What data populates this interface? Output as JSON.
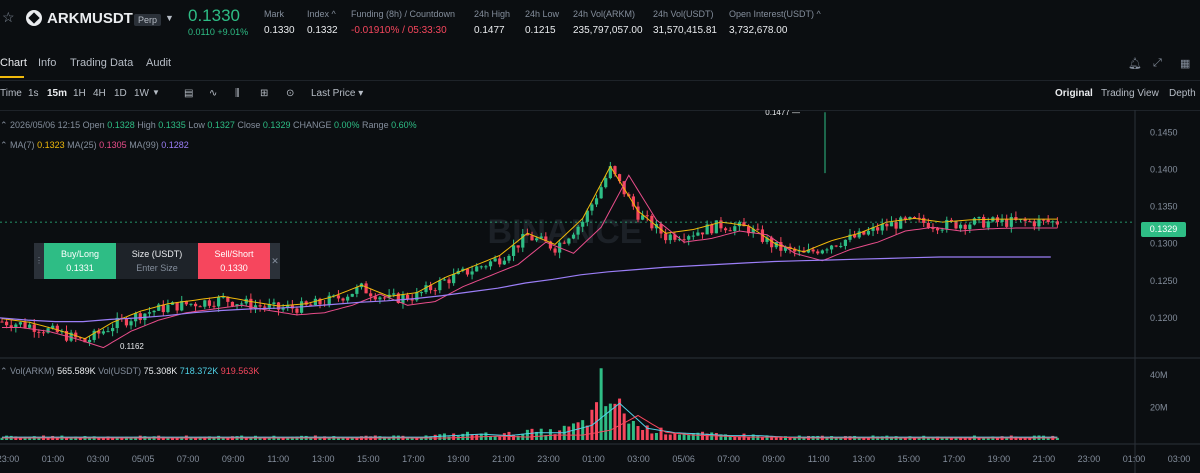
{
  "header": {
    "symbol": "ARKMUSDT",
    "badge": "Perp",
    "last_price": "0.1330",
    "change": "0.0110 +9.01%",
    "stats": [
      {
        "label": "Mark",
        "value": "0.1330"
      },
      {
        "label": "Index ^",
        "value": "0.1332"
      },
      {
        "label": "Funding (8h) / Countdown",
        "value": "-0.01910% / 05:33:30"
      },
      {
        "label": "24h High",
        "value": "0.1477"
      },
      {
        "label": "24h Low",
        "value": "0.1215"
      },
      {
        "label": "24h Vol(ARKM)",
        "value": "235,797,057.00"
      },
      {
        "label": "24h Vol(USDT)",
        "value": "31,570,415.81"
      },
      {
        "label": "Open Interest(USDT) ^",
        "value": "3,732,678.00"
      }
    ]
  },
  "tabs": [
    "Chart",
    "Info",
    "Trading Data",
    "Audit"
  ],
  "toolbar": {
    "intervals": [
      "Time",
      "1s",
      "15m",
      "1H",
      "4H",
      "1D",
      "1W"
    ],
    "active_interval": "15m",
    "price_type": "Last Price",
    "views": [
      "Original",
      "Trading View",
      "Depth"
    ],
    "active_view": "Original"
  },
  "legend": {
    "ohlc": {
      "date": "2026/05/06 12:15",
      "open_label": "Open",
      "open": "0.1328",
      "high_label": "High",
      "high": "0.1335",
      "low_label": "Low",
      "low": "0.1327",
      "close_label": "Close",
      "close": "0.1329",
      "change_label": "CHANGE",
      "change": "0.00%",
      "range_label": "Range",
      "range": "0.60%"
    },
    "ma": [
      {
        "label": "MA(7)",
        "value": "0.1323",
        "color": "#f0b90b"
      },
      {
        "label": "MA(25)",
        "value": "0.1305",
        "color": "#e84d8a"
      },
      {
        "label": "MA(99)",
        "value": "0.1282",
        "color": "#9b7ef7"
      }
    ],
    "vol": [
      {
        "label": "Vol(ARKM)",
        "value": "565.589K"
      },
      {
        "label": "Vol(USDT)",
        "value": "75.308K"
      },
      {
        "value": "718.372K",
        "color": "#4fd1e6"
      },
      {
        "value": "919.563K",
        "color": "#f6465d"
      }
    ]
  },
  "order_panel": {
    "buy_label": "Buy/Long",
    "buy_price": "0.1331",
    "size_label": "Size (USDT)",
    "size_placeholder": "Enter Size",
    "sell_label": "Sell/Short",
    "sell_price": "0.1330"
  },
  "watermark": "BINANCE",
  "chart_data": {
    "type": "line",
    "series": [
      {
        "name": "Close",
        "x_index": [
          0,
          6,
          12,
          18,
          24,
          30,
          36,
          42,
          48,
          54,
          60,
          66,
          72,
          78,
          84,
          90,
          96,
          102,
          108,
          114,
          120,
          126,
          132,
          138,
          144,
          150,
          156,
          162,
          168,
          174,
          180,
          186,
          192,
          198,
          204,
          210,
          216,
          222,
          228
        ],
        "values": [
          0.1195,
          0.119,
          0.118,
          0.1168,
          0.119,
          0.1205,
          0.1215,
          0.122,
          0.1225,
          0.1218,
          0.1212,
          0.1215,
          0.1225,
          0.124,
          0.1225,
          0.123,
          0.125,
          0.1265,
          0.128,
          0.131,
          0.1295,
          0.133,
          0.14,
          0.134,
          0.131,
          0.1315,
          0.1325,
          0.132,
          0.1295,
          0.1285,
          0.13,
          0.131,
          0.1325,
          0.133,
          0.1325,
          0.1328,
          0.1329,
          0.1329,
          0.1329
        ]
      },
      {
        "name": "MA(99)",
        "values": [
          0.12,
          0.1197,
          0.1195,
          0.1195,
          0.1198,
          0.12,
          0.1203,
          0.1207,
          0.121,
          0.1212,
          0.1213,
          0.1215,
          0.1218,
          0.1221,
          0.1223,
          0.1226,
          0.123,
          0.1235,
          0.124,
          0.1247,
          0.1252,
          0.1258,
          0.1262,
          0.1265,
          0.1268,
          0.127,
          0.1272,
          0.1274,
          0.1276,
          0.1277,
          0.1278,
          0.1279,
          0.128,
          0.1281,
          0.1282,
          0.1282,
          0.1282,
          0.1282,
          0.1282
        ]
      }
    ],
    "volume": [
      2,
      2,
      2,
      2,
      2,
      2,
      2,
      2,
      2,
      2,
      2,
      2,
      2,
      2,
      2,
      2,
      3,
      4,
      3,
      5,
      5,
      10,
      25,
      8,
      5,
      4,
      3,
      3,
      2,
      2,
      2,
      2,
      2,
      2,
      2,
      2,
      2,
      2,
      2
    ],
    "volume_peak": {
      "index": 130,
      "value": 44
    },
    "high_marker": "0.1477",
    "low_marker": "0.1162",
    "current_price_label": "0.1329",
    "y_ticks": [
      "0.1450",
      "0.1400",
      "0.1350",
      "0.1300",
      "0.1250",
      "0.1200"
    ],
    "ylim": [
      0.115,
      0.148
    ],
    "vol_ticks": [
      "40M",
      "20M"
    ],
    "vol_ylim": [
      0,
      46
    ],
    "x_ticks": [
      "23:00",
      "01:00",
      "03:00",
      "05/05",
      "07:00",
      "09:00",
      "11:00",
      "13:00",
      "15:00",
      "17:00",
      "19:00",
      "21:00",
      "23:00",
      "01:00",
      "03:00",
      "05/06",
      "07:00",
      "09:00",
      "11:00",
      "13:00",
      "15:00",
      "17:00",
      "19:00",
      "21:00",
      "23:00",
      "01:00",
      "03:00"
    ]
  }
}
